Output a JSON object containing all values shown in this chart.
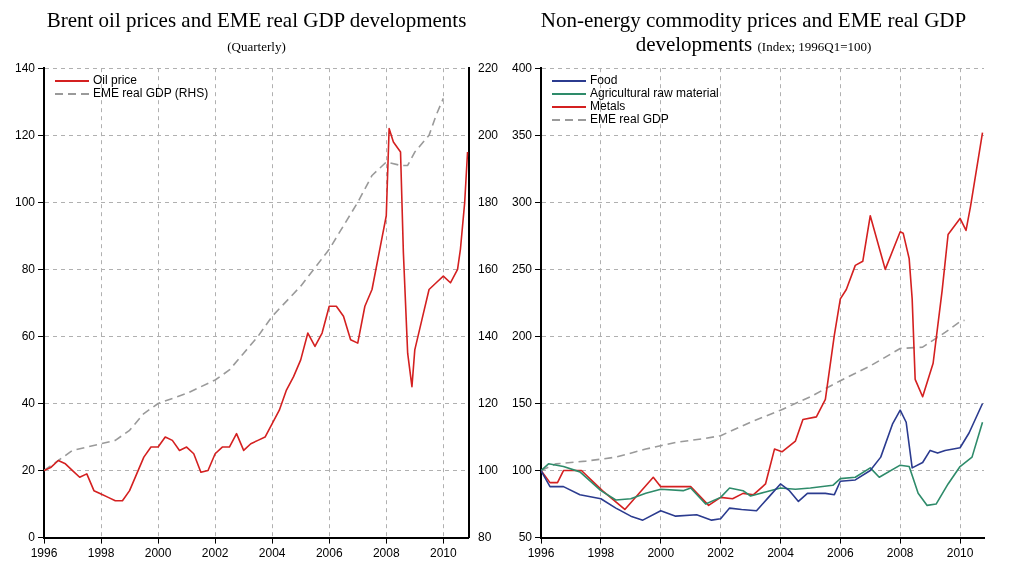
{
  "chart_data": [
    {
      "type": "line",
      "title": "Brent oil prices and EME real GDP developments",
      "subtitle": "(Quarterly)",
      "xlim": [
        1996,
        2010.9
      ],
      "xticks": [
        1996,
        1998,
        2000,
        2002,
        2004,
        2006,
        2008,
        2010
      ],
      "ylim": [
        0,
        140
      ],
      "yticks": [
        0,
        20,
        40,
        60,
        80,
        100,
        120,
        140
      ],
      "y2lim": [
        80,
        220
      ],
      "y2ticks": [
        80,
        100,
        120,
        140,
        160,
        180,
        200,
        220
      ],
      "grid": true,
      "legend": "top left",
      "marker": "none",
      "series": [
        {
          "name": "Oil price",
          "color": "#d42020",
          "line_style": "solid",
          "x": [
            1996,
            1996.25,
            1996.5,
            1996.75,
            1997,
            1997.25,
            1997.5,
            1997.75,
            1998,
            1998.25,
            1998.5,
            1998.75,
            1999,
            1999.25,
            1999.5,
            1999.75,
            2000,
            2000.25,
            2000.5,
            2000.75,
            2001,
            2001.25,
            2001.5,
            2001.75,
            2002,
            2002.25,
            2002.5,
            2002.75,
            2003,
            2003.25,
            2003.5,
            2003.75,
            2004,
            2004.25,
            2004.5,
            2004.75,
            2005,
            2005.25,
            2005.5,
            2005.75,
            2006,
            2006.25,
            2006.5,
            2006.75,
            2007,
            2007.25,
            2007.5,
            2007.75,
            2008,
            2008.1,
            2008.25,
            2008.5,
            2008.6,
            2008.75,
            2008.9,
            2009,
            2009.25,
            2009.5,
            2009.75,
            2010,
            2010.25,
            2010.5,
            2010.6,
            2010.75,
            2010.85
          ],
          "values": [
            20,
            21,
            23,
            22,
            20,
            18,
            19,
            14,
            13,
            12,
            11,
            11,
            14,
            19,
            24,
            27,
            27,
            30,
            29,
            26,
            27,
            25,
            19.5,
            20,
            25,
            27,
            27,
            31,
            26,
            28,
            29,
            30,
            34,
            38,
            44,
            48,
            53,
            61,
            57,
            61,
            69,
            69,
            66,
            59,
            58,
            69,
            74,
            85,
            96,
            122,
            118,
            115,
            85,
            55,
            45,
            56,
            65,
            74,
            76,
            78,
            76,
            80,
            86,
            100,
            115
          ]
        },
        {
          "name": "EME real GDP (RHS)",
          "color": "#9a9a9a",
          "line_style": "dashed",
          "axis": "y2",
          "x": [
            1996,
            1997,
            1998,
            1998.5,
            1999,
            1999.5,
            2000,
            2001,
            2002,
            2002.5,
            2003,
            2003.5,
            2004,
            2005,
            2006,
            2007,
            2007.5,
            2008,
            2008.5,
            2008.75,
            2009,
            2009.5,
            2009.75,
            2010
          ],
          "values": [
            100,
            106,
            108,
            109,
            112,
            117,
            120,
            123,
            127,
            130,
            135,
            140,
            146,
            155,
            166,
            180,
            188,
            192,
            191,
            191,
            195,
            200,
            206,
            211
          ]
        }
      ]
    },
    {
      "type": "line",
      "title": "Non-energy commodity prices and EME real GDP developments",
      "subtitle": "(Index; 1996Q1=100)",
      "xlim": [
        1996,
        2010.8
      ],
      "xticks": [
        1996,
        1998,
        2000,
        2002,
        2004,
        2006,
        2008,
        2010
      ],
      "ylim": [
        50,
        400
      ],
      "yticks": [
        50,
        100,
        150,
        200,
        250,
        300,
        350,
        400
      ],
      "grid": true,
      "legend": "top left",
      "marker": "none",
      "series": [
        {
          "name": "Food",
          "color": "#2b3b8f",
          "line_style": "solid",
          "x": [
            1996,
            1996.3,
            1996.75,
            1997.3,
            1998,
            1998.5,
            1999,
            1999.4,
            2000,
            2000.5,
            2001.2,
            2001.7,
            2002,
            2002.3,
            2002.7,
            2003.2,
            2003.6,
            2004,
            2004.3,
            2004.6,
            2004.9,
            2005.5,
            2005.8,
            2006,
            2006.5,
            2007,
            2007.35,
            2007.75,
            2008,
            2008.2,
            2008.4,
            2008.75,
            2009,
            2009.25,
            2009.5,
            2010,
            2010.3,
            2010.75
          ],
          "values": [
            100,
            88,
            88,
            82,
            79,
            72,
            66,
            63,
            70,
            66,
            67,
            63,
            64,
            72,
            71,
            70,
            80,
            90,
            85,
            77,
            83,
            83,
            82,
            92,
            93,
            100,
            110,
            135,
            145,
            136,
            102,
            106,
            115,
            113,
            115,
            117,
            128,
            150
          ]
        },
        {
          "name": "Agricultural raw material",
          "color": "#2e8b6a",
          "line_style": "solid",
          "x": [
            1996,
            1996.25,
            1996.75,
            1997.3,
            1998,
            1998.5,
            1999,
            1999.5,
            2000,
            2000.75,
            2001,
            2001.5,
            2002,
            2002.3,
            2002.75,
            2003,
            2003.5,
            2004,
            2004.5,
            2005,
            2005.75,
            2006,
            2006.5,
            2007,
            2007.3,
            2008,
            2008.3,
            2008.6,
            2008.9,
            2009.2,
            2009.6,
            2010,
            2010.4,
            2010.75
          ],
          "values": [
            100,
            105,
            103,
            99,
            85,
            78,
            79,
            83,
            86,
            85,
            87,
            75,
            80,
            87,
            85,
            81,
            84,
            87,
            86,
            87,
            89,
            94,
            95,
            102,
            95,
            104,
            103,
            83,
            74,
            75,
            90,
            103,
            110,
            136
          ]
        },
        {
          "name": "Metals",
          "color": "#d42020",
          "line_style": "solid",
          "x": [
            1996,
            1996.3,
            1996.55,
            1996.75,
            1997.35,
            1998.05,
            1998.8,
            1999.75,
            2000,
            2001,
            2001.6,
            2002,
            2002.4,
            2002.75,
            2003.1,
            2003.5,
            2003.8,
            2004.05,
            2004.5,
            2004.75,
            2005.2,
            2005.5,
            2005.8,
            2006,
            2006.2,
            2006.5,
            2006.75,
            2007,
            2007.5,
            2008,
            2008.1,
            2008.3,
            2008.4,
            2008.5,
            2008.75,
            2009.1,
            2009.4,
            2009.6,
            2010,
            2010.2,
            2010.35,
            2010.75
          ],
          "values": [
            100,
            91,
            91,
            100,
            100,
            85,
            71,
            95,
            88,
            88,
            74,
            80,
            79,
            83,
            82,
            90,
            116,
            114,
            122,
            138,
            140,
            153,
            201,
            228,
            235,
            253,
            256,
            290,
            250,
            278,
            277,
            258,
            228,
            168,
            155,
            180,
            234,
            276,
            288,
            279,
            297,
            352
          ]
        },
        {
          "name": "EME real GDP",
          "color": "#9a9a9a",
          "line_style": "dashed",
          "x": [
            1996,
            1996.5,
            1997.5,
            1998.5,
            1999.5,
            2000.5,
            2001.5,
            2002,
            2003,
            2004,
            2005,
            2006,
            2007,
            2008,
            2008.75,
            2009.5,
            2010,
            2010.15
          ],
          "values": [
            100,
            105,
            107,
            110,
            116,
            121,
            124,
            126,
            136,
            145,
            155,
            167,
            178,
            191,
            192,
            203,
            211,
            212
          ]
        }
      ]
    }
  ]
}
